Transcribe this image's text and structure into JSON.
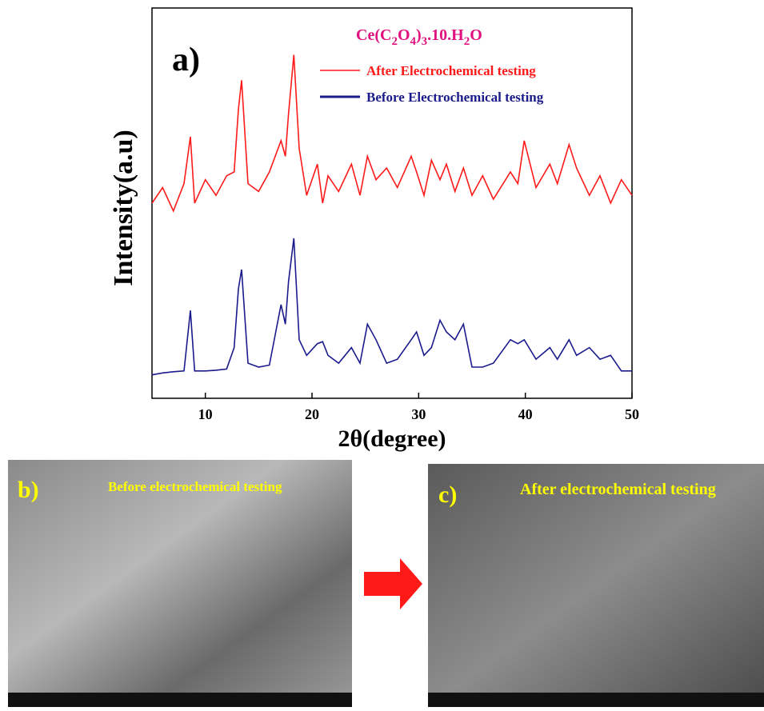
{
  "chart_data": {
    "type": "line",
    "panel_label": "a)",
    "formula": [
      "Ce(C",
      "2",
      "O",
      "4",
      ")",
      "3",
      ".10.H",
      "2",
      "O"
    ],
    "x_label": "2θ(degree)",
    "y_label": "Intensity(a.u)",
    "xlim": [
      5,
      50
    ],
    "xticks": [
      10,
      20,
      30,
      40,
      50
    ],
    "ylim": [
      0,
      100
    ],
    "x": [
      5,
      6,
      7,
      8,
      8.6,
      9,
      10,
      11,
      12,
      12.7,
      13.1,
      13.4,
      14,
      15,
      16,
      17.1,
      17.5,
      17.8,
      18.3,
      18.8,
      19.5,
      20.5,
      21,
      21.5,
      22.5,
      23.7,
      24.5,
      25.2,
      26,
      27,
      28,
      29.3,
      29.8,
      30.5,
      31.2,
      32,
      32.6,
      33.4,
      34.2,
      35,
      36,
      37,
      38.6,
      39.3,
      39.9,
      41,
      42.3,
      43,
      44.1,
      44.8,
      46,
      47,
      48,
      49,
      50
    ],
    "series": [
      {
        "name": "After Electrochemical testing",
        "color": "#ff1a1a",
        "values": [
          50,
          54,
          48,
          55,
          67,
          50,
          56,
          52,
          57,
          58,
          74,
          81.5,
          55,
          53,
          58,
          66,
          62,
          73,
          88,
          64,
          52,
          60,
          50,
          57,
          53,
          60,
          52,
          62,
          56,
          59,
          54,
          62,
          58,
          52,
          61,
          56,
          60,
          53,
          59,
          52,
          57,
          51,
          58,
          55,
          66,
          54,
          60,
          55,
          65,
          59,
          52,
          57,
          50,
          56,
          52
        ]
      },
      {
        "name": "Before Electrochemical testing",
        "color": "#1a1a8c",
        "values": [
          6,
          6.5,
          6.8,
          7,
          22.5,
          7,
          7,
          7.2,
          7.5,
          13,
          28,
          33,
          9,
          8,
          8.5,
          24,
          19,
          30,
          41,
          15,
          11,
          14,
          14.5,
          11,
          9,
          13,
          9,
          19,
          15,
          9,
          10,
          15,
          17,
          11,
          13,
          20,
          17,
          15,
          19,
          8,
          8,
          9,
          15,
          14,
          15,
          10,
          13,
          10,
          15,
          11,
          13,
          10,
          11,
          7,
          7
        ]
      }
    ]
  },
  "images": [
    {
      "label": "b)",
      "caption": "Before electrochemical testing"
    },
    {
      "label": "c)",
      "caption": "After electrochemical testing"
    }
  ]
}
